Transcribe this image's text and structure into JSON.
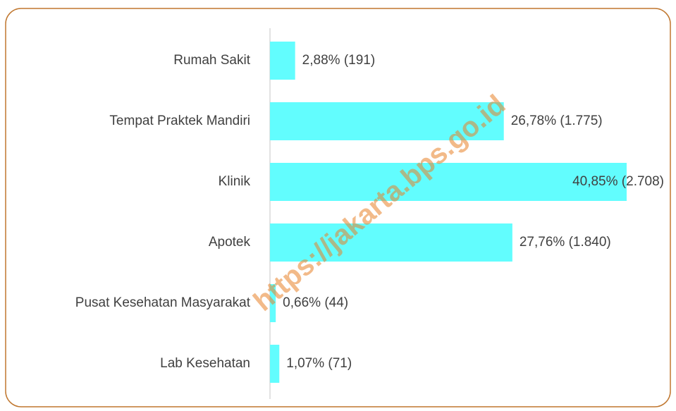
{
  "chart_data": {
    "type": "hbar",
    "categories": [
      "Rumah Sakit",
      "Tempat Praktek Mandiri",
      "Klinik",
      "Apotek",
      "Pusat Kesehatan Masyarakat",
      "Lab Kesehatan"
    ],
    "values": [
      2.88,
      26.78,
      40.85,
      27.76,
      0.66,
      1.07
    ],
    "value_labels": [
      "2,88% (191)",
      "26,78% (1.775)",
      "40,85% (2.708)",
      "27,76% (1.840)",
      "0,66% (44)",
      "1,07% (71)"
    ],
    "color": "#62fdfe",
    "watermark": "https://jakarta.bps.go.id"
  }
}
